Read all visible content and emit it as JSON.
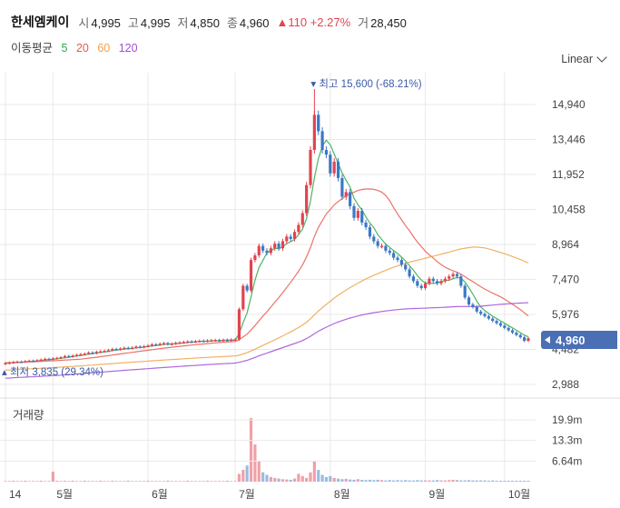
{
  "header": {
    "stock_name": "한세엠케이",
    "open_label": "시",
    "open_value": "4,995",
    "high_label": "고",
    "high_value": "4,995",
    "low_label": "저",
    "low_value": "4,850",
    "close_label": "종",
    "close_value": "4,960",
    "change_arrow": "▲",
    "change_value": "110",
    "change_pct": "+2.27%",
    "volume_label": "거",
    "volume_value": "28,450"
  },
  "ma_legend": {
    "label": "이동평균",
    "periods": [
      {
        "text": "5",
        "color": "#2ea84a"
      },
      {
        "text": "20",
        "color": "#e8594f"
      },
      {
        "text": "60",
        "color": "#f0a24a"
      },
      {
        "text": "120",
        "color": "#a04ed6"
      }
    ]
  },
  "scale_selector": {
    "value": "Linear",
    "icon": "chevron-down-icon"
  },
  "price_tag": {
    "value": "4,960",
    "color": "#4a6fb5"
  },
  "volume_panel": {
    "label": "거래량"
  },
  "colors": {
    "up": "#e0454f",
    "down": "#3b78c7",
    "grid": "#e9e9e9"
  },
  "chart_data": {
    "type": "candlestick",
    "y_axis": {
      "ticks": [
        "14,940",
        "13,446",
        "11,952",
        "10,458",
        "8,964",
        "7,470",
        "5,976",
        "4,482",
        "2,988"
      ],
      "ylim": [
        2988,
        14940
      ],
      "scale": "linear"
    },
    "x_axis": {
      "ticks": [
        "14",
        "5월",
        "6월",
        "7월",
        "8월",
        "9월",
        "10월"
      ]
    },
    "volume_axis": {
      "ticks": [
        "19.9m",
        "13.3m",
        "6.64m"
      ]
    },
    "annotations": [
      {
        "text": "최고 15,600 (-68.21%)",
        "kind": "max",
        "value": 15600
      },
      {
        "text": "최저 3,835 (29.34%)",
        "kind": "min",
        "value": 3835
      }
    ],
    "last_price": 4960,
    "series": [
      {
        "name": "가격",
        "values": [
          3900,
          3920,
          3940,
          3960,
          3950,
          3980,
          4000,
          3990,
          4020,
          4050,
          4080,
          4060,
          4100,
          4120,
          4150,
          4200,
          4180,
          4220,
          4250,
          4280,
          4300,
          4350,
          4320,
          4380,
          4400,
          4420,
          4450,
          4500,
          4480,
          4520,
          4550,
          4530,
          4560,
          4600,
          4580,
          4620,
          4650,
          4700,
          4680,
          4720,
          4750,
          4700,
          4730,
          4760,
          4780,
          4800,
          4820,
          4810,
          4830,
          4850,
          4840,
          4860,
          4870,
          4880,
          4870,
          4890,
          4880,
          4900,
          4910,
          6200,
          7200,
          7000,
          8300,
          8500,
          8900,
          8700,
          8600,
          8800,
          9000,
          8800,
          9100,
          9300,
          9200,
          9500,
          9800,
          10300,
          11500,
          13000,
          14500,
          13800,
          13000,
          12800,
          12000,
          12500,
          11800,
          11000,
          11200,
          10600,
          10100,
          10400,
          9900,
          9700,
          9300,
          9100,
          8900,
          8900,
          8700,
          8600,
          8400,
          8300,
          8100,
          7900,
          7600,
          7400,
          7200,
          7100,
          7300,
          7500,
          7400,
          7300,
          7400,
          7500,
          7600,
          7700,
          7600,
          7200,
          6700,
          6400,
          6300,
          6100,
          6000,
          5900,
          5800,
          5700,
          5600,
          5500,
          5400,
          5300,
          5200,
          5100,
          5000,
          4850,
          4960
        ]
      },
      {
        "name": "거래량",
        "values": [
          0.2,
          0.2,
          0.3,
          0.2,
          0.2,
          0.3,
          0.2,
          0.2,
          0.2,
          0.3,
          0.2,
          0.2,
          3.2,
          0.3,
          0.2,
          0.3,
          0.2,
          0.3,
          0.2,
          0.2,
          0.3,
          0.2,
          0.2,
          0.2,
          0.3,
          0.2,
          0.2,
          0.3,
          0.2,
          0.2,
          0.2,
          0.3,
          0.2,
          0.2,
          0.2,
          0.2,
          0.3,
          0.2,
          0.2,
          0.2,
          0.2,
          0.3,
          0.2,
          0.2,
          0.2,
          0.2,
          0.3,
          0.2,
          0.2,
          0.2,
          0.2,
          0.3,
          0.2,
          0.2,
          0.2,
          0.2,
          0.3,
          0.2,
          0.2,
          2.5,
          3.8,
          5.2,
          20.5,
          12.0,
          6.5,
          3.0,
          2.2,
          1.5,
          1.2,
          1.0,
          0.8,
          0.7,
          0.6,
          1.0,
          2.5,
          1.8,
          1.2,
          3.0,
          6.5,
          3.8,
          2.2,
          1.5,
          1.8,
          1.2,
          1.0,
          0.8,
          0.9,
          0.7,
          0.6,
          0.8,
          0.6,
          0.5,
          0.6,
          0.5,
          0.6,
          0.5,
          0.4,
          0.5,
          0.4,
          0.5,
          0.4,
          0.5,
          0.4,
          0.4,
          0.5,
          0.4,
          0.4,
          0.4,
          0.4,
          0.5,
          0.4,
          0.4,
          0.5,
          0.6,
          0.5,
          0.4,
          0.4,
          0.5,
          0.4,
          0.4,
          0.4,
          0.4,
          0.3,
          0.4,
          0.3,
          0.3,
          0.3,
          0.3,
          0.3,
          0.3,
          0.3,
          0.3,
          0.3
        ]
      }
    ]
  }
}
